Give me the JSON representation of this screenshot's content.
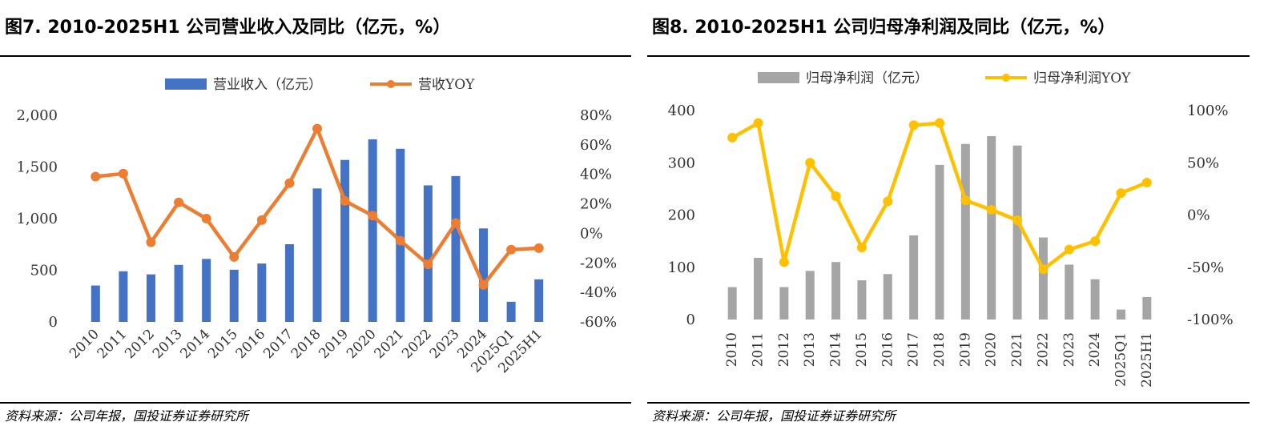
{
  "left": {
    "title": "图7. 2010-2025H1 公司营业收入及同比（亿元，%）",
    "source": "资料来源：公司年报，国投证券证券研究所",
    "chart_data": {
      "type": "bar",
      "categories": [
        "2010",
        "2011",
        "2012",
        "2013",
        "2014",
        "2015",
        "2016",
        "2017",
        "2018",
        "2019",
        "2020",
        "2021",
        "2022",
        "2023",
        "2024",
        "2025Q1",
        "2025H1"
      ],
      "series": [
        {
          "name": "营业收入（亿元）",
          "type": "bar",
          "axis": "left",
          "values": [
            352,
            490,
            460,
            552,
            610,
            505,
            565,
            752,
            1292,
            1568,
            1767,
            1676,
            1322,
            1412,
            905,
            195,
            412
          ]
        },
        {
          "name": "营收YOY",
          "type": "line",
          "axis": "right",
          "values": [
            38.5,
            40.5,
            -6,
            21,
            10,
            -16,
            9,
            34,
            71,
            22,
            12,
            -5,
            -21,
            7,
            -35,
            -11,
            -10
          ]
        }
      ],
      "left_axis": {
        "ylim": [
          0,
          2000
        ],
        "ticks": [
          "0",
          "500",
          "1,000",
          "1,500",
          "2,000"
        ]
      },
      "right_axis": {
        "ylim": [
          -60,
          80
        ],
        "ticks": [
          "-60%",
          "-40%",
          "-20%",
          "0%",
          "20%",
          "40%",
          "60%",
          "80%"
        ]
      },
      "legend": "top",
      "grid": false,
      "colors": {
        "bar": "#4472C4",
        "line": "#ED7D31"
      }
    }
  },
  "right": {
    "title": "图8. 2010-2025H1 公司归母净利润及同比（亿元，%）",
    "source": "资料来源：公司年报，国投证券证券研究所",
    "chart_data": {
      "type": "bar",
      "categories": [
        "2010",
        "2011",
        "2012",
        "2013",
        "2014",
        "2015",
        "2016",
        "2017",
        "2018",
        "2019",
        "2020",
        "2021",
        "2022",
        "2023",
        "2024",
        "2025Q1",
        "2025H1"
      ],
      "series": [
        {
          "name": "归母净利润（亿元）",
          "type": "bar",
          "axis": "left",
          "values": [
            62,
            118,
            62,
            93,
            110,
            75,
            87,
            161,
            296,
            336,
            351,
            333,
            157,
            105,
            77,
            19,
            43
          ]
        },
        {
          "name": "归母净利润YOY",
          "type": "line",
          "axis": "right",
          "values": [
            74,
            88,
            -45,
            50,
            18,
            -31,
            13,
            86,
            88,
            14,
            5,
            -5,
            -52,
            -33,
            -25,
            21,
            31
          ]
        }
      ],
      "left_axis": {
        "ylim": [
          0,
          400
        ],
        "ticks": [
          "0",
          "100",
          "200",
          "300",
          "400"
        ]
      },
      "right_axis": {
        "ylim": [
          -100,
          100
        ],
        "ticks": [
          "-100%",
          "-50%",
          "0%",
          "50%",
          "100%"
        ]
      },
      "legend": "top",
      "grid": false,
      "colors": {
        "bar": "#A5A5A5",
        "line": "#FFC000"
      }
    }
  }
}
